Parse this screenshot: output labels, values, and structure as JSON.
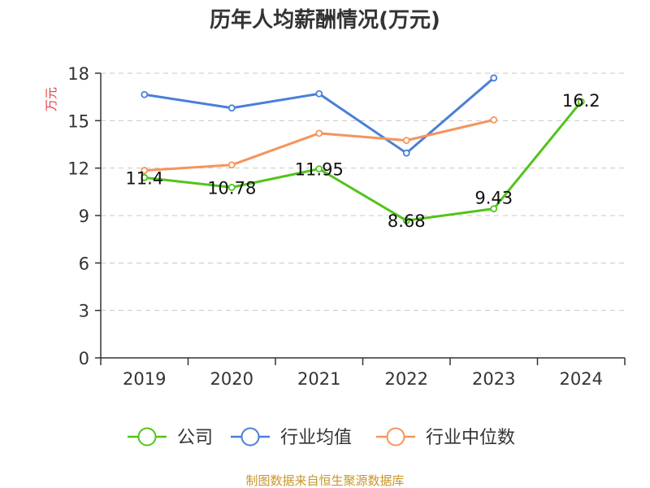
{
  "chart_data": {
    "type": "line",
    "title": "历年人均薪酬情况(万元)",
    "ylabel": "万元",
    "categories": [
      "2019",
      "2020",
      "2021",
      "2022",
      "2023",
      "2024"
    ],
    "ylim": [
      0,
      18
    ],
    "yticks": [
      0,
      3,
      6,
      9,
      12,
      15,
      18
    ],
    "grid": true,
    "legend_position": "bottom",
    "series": [
      {
        "name": "公司",
        "color": "#52c41a",
        "values": [
          11.4,
          10.78,
          11.95,
          8.68,
          9.43,
          16.2
        ],
        "labels": [
          "11.4",
          "10.78",
          "11.95",
          "8.68",
          "9.43",
          "16.2"
        ]
      },
      {
        "name": "行业均值",
        "color": "#4a7fd8",
        "values": [
          16.65,
          15.8,
          16.7,
          12.95,
          17.7,
          null
        ]
      },
      {
        "name": "行业中位数",
        "color": "#f5945c",
        "values": [
          11.85,
          12.2,
          14.2,
          13.75,
          15.05,
          null
        ]
      }
    ],
    "source": "制图数据来自恒生聚源数据库",
    "ylabel_color": "#e03c3c",
    "source_color": "#c8962a"
  }
}
